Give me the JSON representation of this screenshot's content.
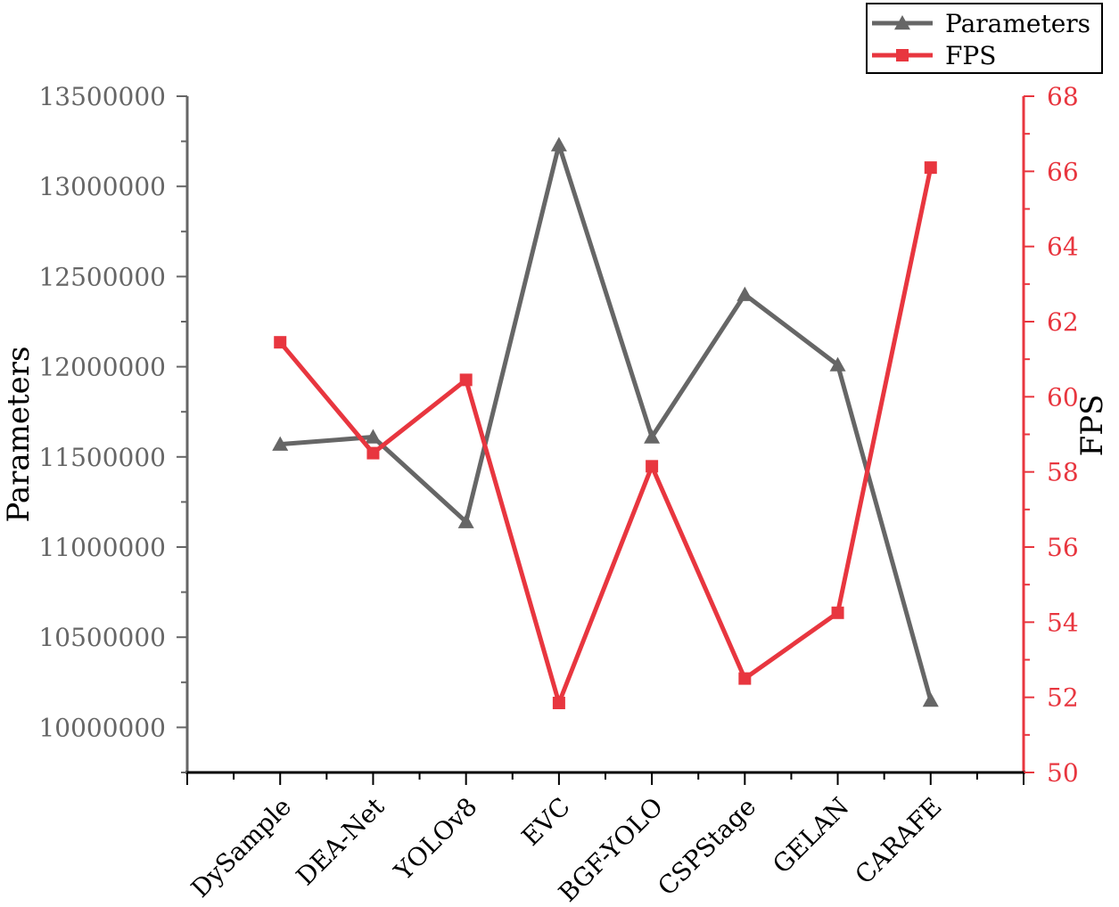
{
  "chart_data": {
    "type": "line",
    "categories": [
      "DySample",
      "DEA-Net",
      "YOLOv8",
      "EVC",
      "BGF-YOLO",
      "CSPStage",
      "GELAN",
      "CARAFE"
    ],
    "series": [
      {
        "name": "Parameters",
        "axis": "left",
        "marker": "triangle",
        "color": "#666666",
        "values": [
          11570000,
          11610000,
          11140000,
          13230000,
          11610000,
          12400000,
          12010000,
          10150000
        ]
      },
      {
        "name": "FPS",
        "axis": "right",
        "marker": "square",
        "color": "#e8363f",
        "values": [
          61.45,
          58.5,
          60.45,
          51.85,
          58.15,
          52.5,
          54.25,
          66.1
        ]
      }
    ],
    "ylabel_left": "Parameters",
    "ylabel_right": "FPS",
    "ylim_left": [
      9750000,
      13500000
    ],
    "yticks_left": [
      "10000000",
      "10500000",
      "11000000",
      "11500000",
      "12000000",
      "12500000",
      "13000000",
      "13500000"
    ],
    "ylim_right": [
      50,
      68
    ],
    "yticks_right": [
      "50",
      "52",
      "54",
      "56",
      "58",
      "60",
      "62",
      "64",
      "66",
      "68"
    ],
    "legend_position": "top-right",
    "grid": false,
    "colors": {
      "left_axis": "#666666",
      "right_axis": "#e8363f",
      "axis_line": "#000000"
    }
  }
}
